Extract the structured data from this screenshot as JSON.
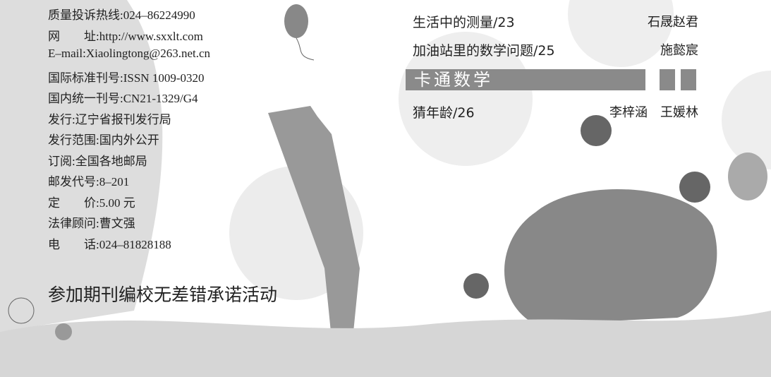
{
  "masthead": {
    "lines": [
      "质量投诉热线:024–86224990",
      "网　　址:http://www.sxxlt.com",
      "E–mail:Xiaolingtong@263.net.cn",
      "国际标准刊号:ISSN 1009-0320",
      "国内统一刊号:CN21-1329/G4",
      "发行:辽宁省报刊发行局",
      "发行范围:国内外公开",
      "订阅:全国各地邮局",
      "邮发代号:8–201",
      "定　　价:5.00 元",
      "法律顾问:曹文强",
      "电　　话:024–81828188"
    ],
    "pledge": "参加期刊编校无差错承诺活动"
  },
  "contents": {
    "entries": [
      {
        "title": "生活中的测量/23",
        "author": "石晟赵君"
      },
      {
        "title": "加油站里的数学问题/25",
        "author": "施懿宸"
      }
    ],
    "section": {
      "title": "卡通数学",
      "entries": [
        {
          "title": "猜年龄/26",
          "author": "李梓涵　王媛林"
        }
      ]
    }
  }
}
